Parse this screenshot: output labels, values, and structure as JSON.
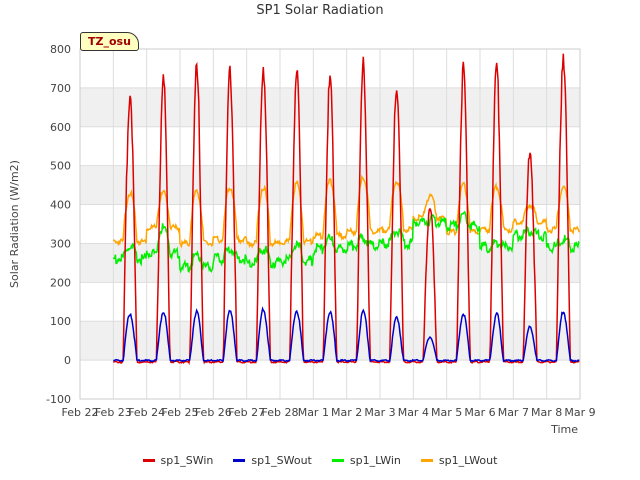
{
  "chart_data": {
    "type": "line",
    "title": "SP1 Solar Radiation",
    "xlabel": "Time",
    "ylabel": "Solar Radiation (W/m2)",
    "ylim": [
      -100,
      800
    ],
    "yticks": [
      -100,
      0,
      100,
      200,
      300,
      400,
      500,
      600,
      700,
      800
    ],
    "xlim": [
      "2024-02-22",
      "2024-03-09"
    ],
    "xtick_labels": [
      "Feb 22",
      "Feb 23",
      "Feb 24",
      "Feb 25",
      "Feb 26",
      "Feb 27",
      "Feb 28",
      "Mar 1",
      "Mar 2",
      "Mar 3",
      "Mar 4",
      "Mar 5",
      "Mar 6",
      "Mar 7",
      "Mar 8",
      "Mar 9"
    ],
    "grid": true,
    "legend_position": "bottom",
    "badge": "TZ_osu",
    "dates": [
      "Feb 23",
      "Feb 24",
      "Feb 25",
      "Feb 26",
      "Feb 27",
      "Feb 28",
      "Mar 1",
      "Mar 2",
      "Mar 3",
      "Mar 4",
      "Mar 5",
      "Mar 6",
      "Mar 7",
      "Mar 8"
    ],
    "series": [
      {
        "name": "sp1_SWin",
        "color": "#dd0000",
        "daily_peak": [
          690,
          720,
          740,
          735,
          760,
          740,
          715,
          750,
          705,
          400,
          740,
          745,
          540,
          790
        ]
      },
      {
        "name": "sp1_SWout",
        "color": "#0000cc",
        "daily_peak": [
          120,
          125,
          125,
          125,
          130,
          128,
          122,
          125,
          110,
          60,
          120,
          118,
          85,
          125
        ]
      },
      {
        "name": "sp1_LWin",
        "color": "#00ee00",
        "daily_night": [
          260,
          275,
          240,
          260,
          250,
          255,
          285,
          295,
          300,
          355,
          345,
          290,
          320,
          290
        ],
        "daily_day": [
          290,
          340,
          270,
          285,
          285,
          295,
          310,
          315,
          330,
          360,
          370,
          300,
          330,
          310
        ]
      },
      {
        "name": "sp1_LWout",
        "color": "#ffa500",
        "daily_night": [
          305,
          340,
          300,
          310,
          300,
          305,
          320,
          330,
          335,
          365,
          330,
          335,
          355,
          335
        ],
        "daily_day": [
          430,
          430,
          435,
          445,
          445,
          455,
          460,
          470,
          460,
          420,
          450,
          445,
          400,
          445
        ]
      }
    ]
  }
}
